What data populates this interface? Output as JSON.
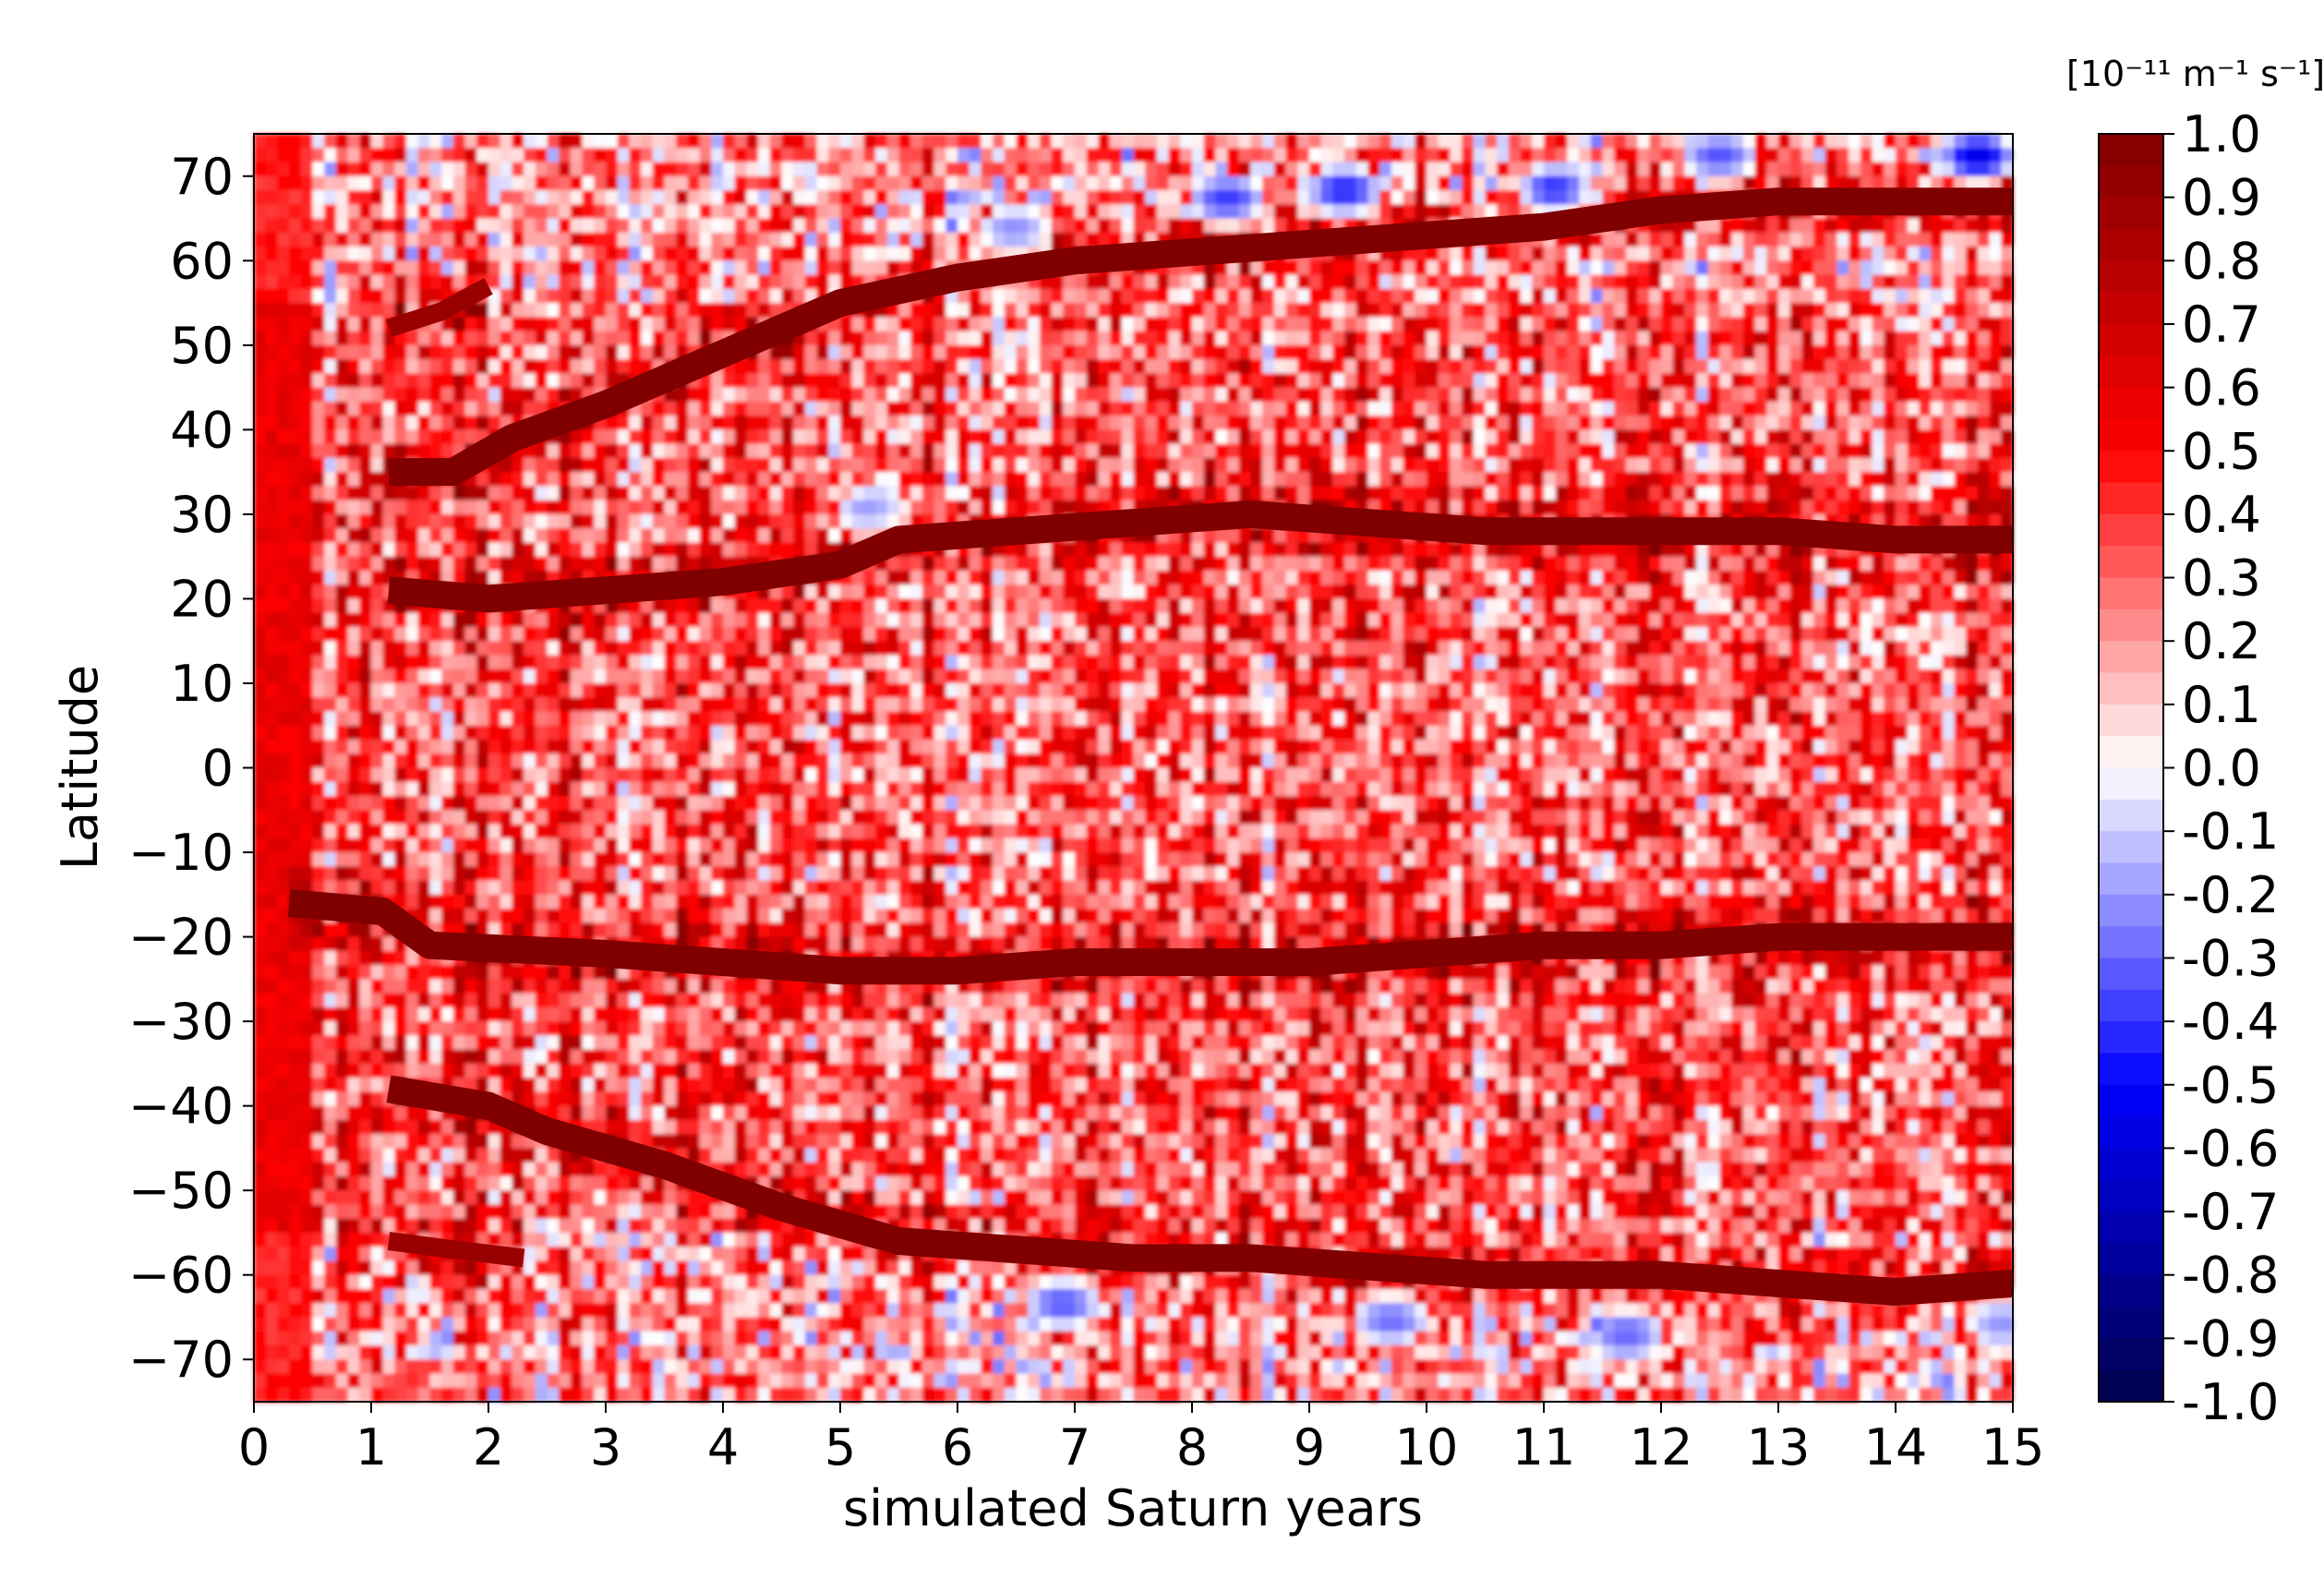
{
  "chart_data": {
    "type": "heatmap",
    "title": "",
    "xlabel": "simulated Saturn years",
    "ylabel": "Latitude",
    "xlim": [
      0,
      15
    ],
    "ylim": [
      -75,
      75
    ],
    "xticks": [
      0,
      1,
      2,
      3,
      4,
      5,
      6,
      7,
      8,
      9,
      10,
      11,
      12,
      13,
      14,
      15
    ],
    "xtick_labels": [
      "0",
      "1",
      "2",
      "3",
      "4",
      "5",
      "6",
      "7",
      "8",
      "9",
      "10",
      "11",
      "12",
      "13",
      "14",
      "15"
    ],
    "yticks": [
      70,
      60,
      50,
      40,
      30,
      20,
      10,
      0,
      -10,
      -20,
      -30,
      -40,
      -50,
      -60,
      -70
    ],
    "ytick_labels": [
      "70",
      "60",
      "50",
      "40",
      "30",
      "20",
      "10",
      "0",
      "−10",
      "−20",
      "−30",
      "−40",
      "−50",
      "−60",
      "−70"
    ],
    "colorbar": {
      "unit_label": "[10⁻¹¹ m⁻¹ s⁻¹]",
      "range": [
        -1.0,
        1.0
      ],
      "colormap": "seismic",
      "colors": [
        "#00004c",
        "#0000ff",
        "#ffffff",
        "#ff0000",
        "#800000"
      ],
      "ticks": [
        1.0,
        0.9,
        0.8,
        0.7,
        0.6,
        0.5,
        0.4,
        0.3,
        0.2,
        0.1,
        0.0,
        -0.1,
        -0.2,
        -0.3,
        -0.4,
        -0.5,
        -0.6,
        -0.7,
        -0.8,
        -0.9,
        -1.0
      ],
      "tick_labels": [
        "1.0",
        "0.9",
        "0.8",
        "0.7",
        "0.6",
        "0.5",
        "0.4",
        "0.3",
        "0.2",
        "0.1",
        "0.0",
        "-0.1",
        "-0.2",
        "-0.3",
        "-0.4",
        "-0.5",
        "-0.6",
        "-0.7",
        "-0.8",
        "-0.9",
        "-1.0"
      ]
    },
    "background_level": 0.35,
    "jets": [
      {
        "name": "",
        "value": 1.0,
        "points": [
          [
            1.15,
            35
          ],
          [
            1.7,
            35
          ],
          [
            2.2,
            39
          ],
          [
            3.0,
            43
          ],
          [
            4.0,
            49
          ],
          [
            5.0,
            55
          ],
          [
            6.0,
            58
          ],
          [
            7.0,
            60
          ],
          [
            8.0,
            61
          ],
          [
            9.0,
            62
          ],
          [
            10.0,
            63
          ],
          [
            11.0,
            64
          ],
          [
            12.0,
            66
          ],
          [
            13.0,
            67
          ],
          [
            14.0,
            67
          ],
          [
            15.0,
            67
          ]
        ]
      },
      {
        "name": "",
        "value": 1.0,
        "points": [
          [
            1.15,
            21
          ],
          [
            2.0,
            20
          ],
          [
            3.0,
            21
          ],
          [
            4.0,
            22
          ],
          [
            5.0,
            24
          ],
          [
            5.5,
            27
          ],
          [
            6.5,
            28
          ],
          [
            7.5,
            29
          ],
          [
            8.5,
            30
          ],
          [
            9.5,
            29
          ],
          [
            10.5,
            28
          ],
          [
            12.0,
            28
          ],
          [
            13.0,
            28
          ],
          [
            14.0,
            27
          ],
          [
            15.0,
            27
          ]
        ]
      },
      {
        "name": "",
        "value": 1.0,
        "points": [
          [
            0.3,
            -16
          ],
          [
            1.1,
            -17
          ],
          [
            1.5,
            -21
          ],
          [
            3.0,
            -22
          ],
          [
            4.0,
            -23
          ],
          [
            5.0,
            -24
          ],
          [
            6.0,
            -24
          ],
          [
            7.0,
            -23
          ],
          [
            8.0,
            -23
          ],
          [
            9.0,
            -23
          ],
          [
            10.0,
            -22
          ],
          [
            11.0,
            -21
          ],
          [
            12.0,
            -21
          ],
          [
            13.0,
            -20
          ],
          [
            14.0,
            -20
          ],
          [
            15.0,
            -20
          ]
        ]
      },
      {
        "name": "",
        "value": 1.0,
        "points": [
          [
            1.15,
            -38
          ],
          [
            2.0,
            -40
          ],
          [
            2.5,
            -43
          ],
          [
            3.5,
            -47
          ],
          [
            4.5,
            -52
          ],
          [
            5.5,
            -56
          ],
          [
            6.5,
            -57
          ],
          [
            7.5,
            -58
          ],
          [
            8.5,
            -58
          ],
          [
            9.5,
            -59
          ],
          [
            10.5,
            -60
          ],
          [
            12.0,
            -60
          ],
          [
            13.0,
            -61
          ],
          [
            14.0,
            -62
          ],
          [
            15.0,
            -61
          ]
        ]
      },
      {
        "name": "",
        "value": 0.9,
        "points": [
          [
            1.15,
            -56
          ],
          [
            1.7,
            -57
          ],
          [
            2.3,
            -58
          ]
        ]
      },
      {
        "name": "",
        "value": 0.9,
        "points": [
          [
            1.15,
            52
          ],
          [
            1.6,
            54
          ],
          [
            2.0,
            57
          ]
        ]
      }
    ],
    "negative_patches": [
      {
        "x": 8.3,
        "y": 67,
        "value": -0.4
      },
      {
        "x": 9.3,
        "y": 68,
        "value": -0.45
      },
      {
        "x": 11.1,
        "y": 68,
        "value": -0.5
      },
      {
        "x": 12.5,
        "y": 72,
        "value": -0.35
      },
      {
        "x": 14.7,
        "y": 72,
        "value": -0.6
      },
      {
        "x": 6.5,
        "y": 63,
        "value": -0.3
      },
      {
        "x": 6.9,
        "y": -63,
        "value": -0.35
      },
      {
        "x": 9.7,
        "y": -65,
        "value": -0.3
      },
      {
        "x": 11.7,
        "y": -67,
        "value": -0.3
      },
      {
        "x": 14.9,
        "y": -65,
        "value": -0.3
      },
      {
        "x": 5.3,
        "y": 30,
        "value": -0.25
      }
    ]
  }
}
